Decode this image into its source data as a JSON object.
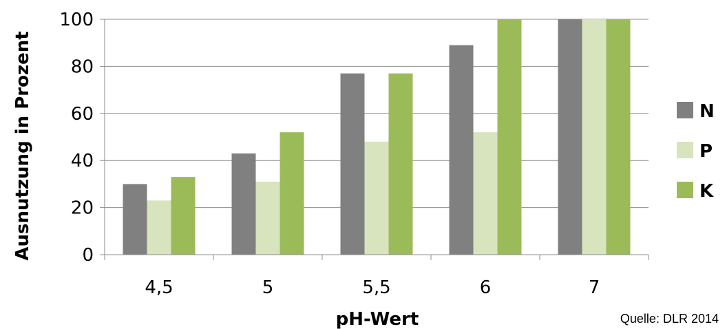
{
  "chart_data": {
    "type": "bar",
    "categories": [
      "4,5",
      "5",
      "5,5",
      "6",
      "7"
    ],
    "series": [
      {
        "name": "N",
        "values": [
          30,
          43,
          77,
          89,
          100
        ],
        "color": "#808080"
      },
      {
        "name": "P",
        "values": [
          23,
          31,
          48,
          52,
          100
        ],
        "color": "#d7e4bd"
      },
      {
        "name": "K",
        "values": [
          33,
          52,
          77,
          100,
          100
        ],
        "color": "#9bbb59"
      }
    ],
    "xlabel": "pH-Wert",
    "ylabel": "Ausnutzung in Prozent",
    "ylim": [
      0,
      100
    ],
    "yticks": [
      0,
      20,
      40,
      60,
      80,
      100
    ],
    "grid": true,
    "legend_position": "right"
  },
  "source_note": "Quelle: DLR 2014"
}
